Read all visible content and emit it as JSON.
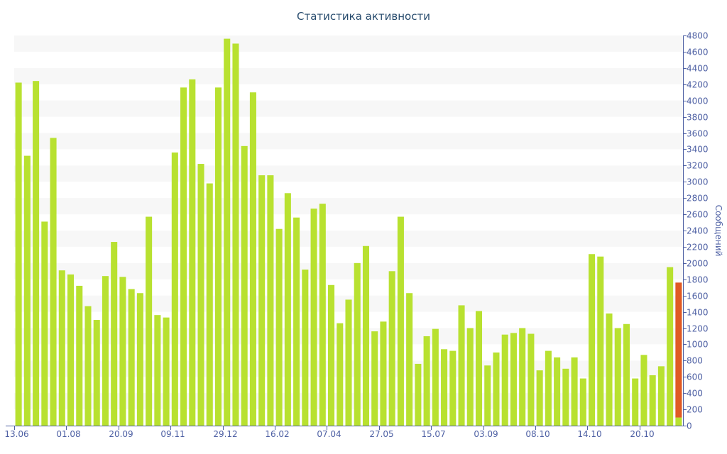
{
  "chart_data": {
    "type": "bar",
    "title": "Статистика активности",
    "ylabel": "Сообщений",
    "xlabel": "",
    "ylim": [
      0,
      4800
    ],
    "y_ticks": [
      0,
      200,
      400,
      600,
      800,
      1000,
      1200,
      1400,
      1600,
      1800,
      2000,
      2200,
      2400,
      2600,
      2800,
      3000,
      3200,
      3400,
      3600,
      3800,
      4000,
      4200,
      4400,
      4600,
      4800
    ],
    "x_tick_labels": [
      "13.06",
      "01.08",
      "20.09",
      "09.11",
      "29.12",
      "16.02",
      "07.04",
      "27.05",
      "15.07",
      "03.09",
      "08.10",
      "14.10",
      "20.10"
    ],
    "x_tick_label_positions": [
      0,
      6,
      12,
      18,
      24,
      30,
      36,
      42,
      48,
      54,
      60,
      66,
      72
    ],
    "values": [
      4220,
      3320,
      4240,
      2510,
      3540,
      1910,
      1860,
      1720,
      1470,
      1300,
      1840,
      2260,
      1830,
      1680,
      1630,
      2570,
      1360,
      1330,
      3360,
      4160,
      4260,
      3220,
      2980,
      4160,
      4760,
      4700,
      3440,
      4100,
      3080,
      3080,
      2420,
      2860,
      2560,
      1920,
      2670,
      2730,
      1730,
      1260,
      1550,
      2000,
      2210,
      1160,
      1280,
      1900,
      2570,
      1630,
      760,
      1100,
      1190,
      940,
      920,
      1480,
      1200,
      1410,
      740,
      900,
      1120,
      1140,
      1200,
      1130,
      680,
      920,
      840,
      700,
      840,
      580,
      2110,
      2080,
      1380,
      1200,
      1250,
      580,
      870,
      620,
      730,
      1950,
      1760
    ],
    "highlight": {
      "index": 76,
      "color": "#e05a24",
      "base_value": 100
    },
    "bar_color": "#b8e130",
    "grid_band_color": "#f7f7f7",
    "axis_color": "#4d5fa3",
    "title_color": "#274b6d",
    "grid": true,
    "legend": "none",
    "y_axis_side": "right"
  }
}
